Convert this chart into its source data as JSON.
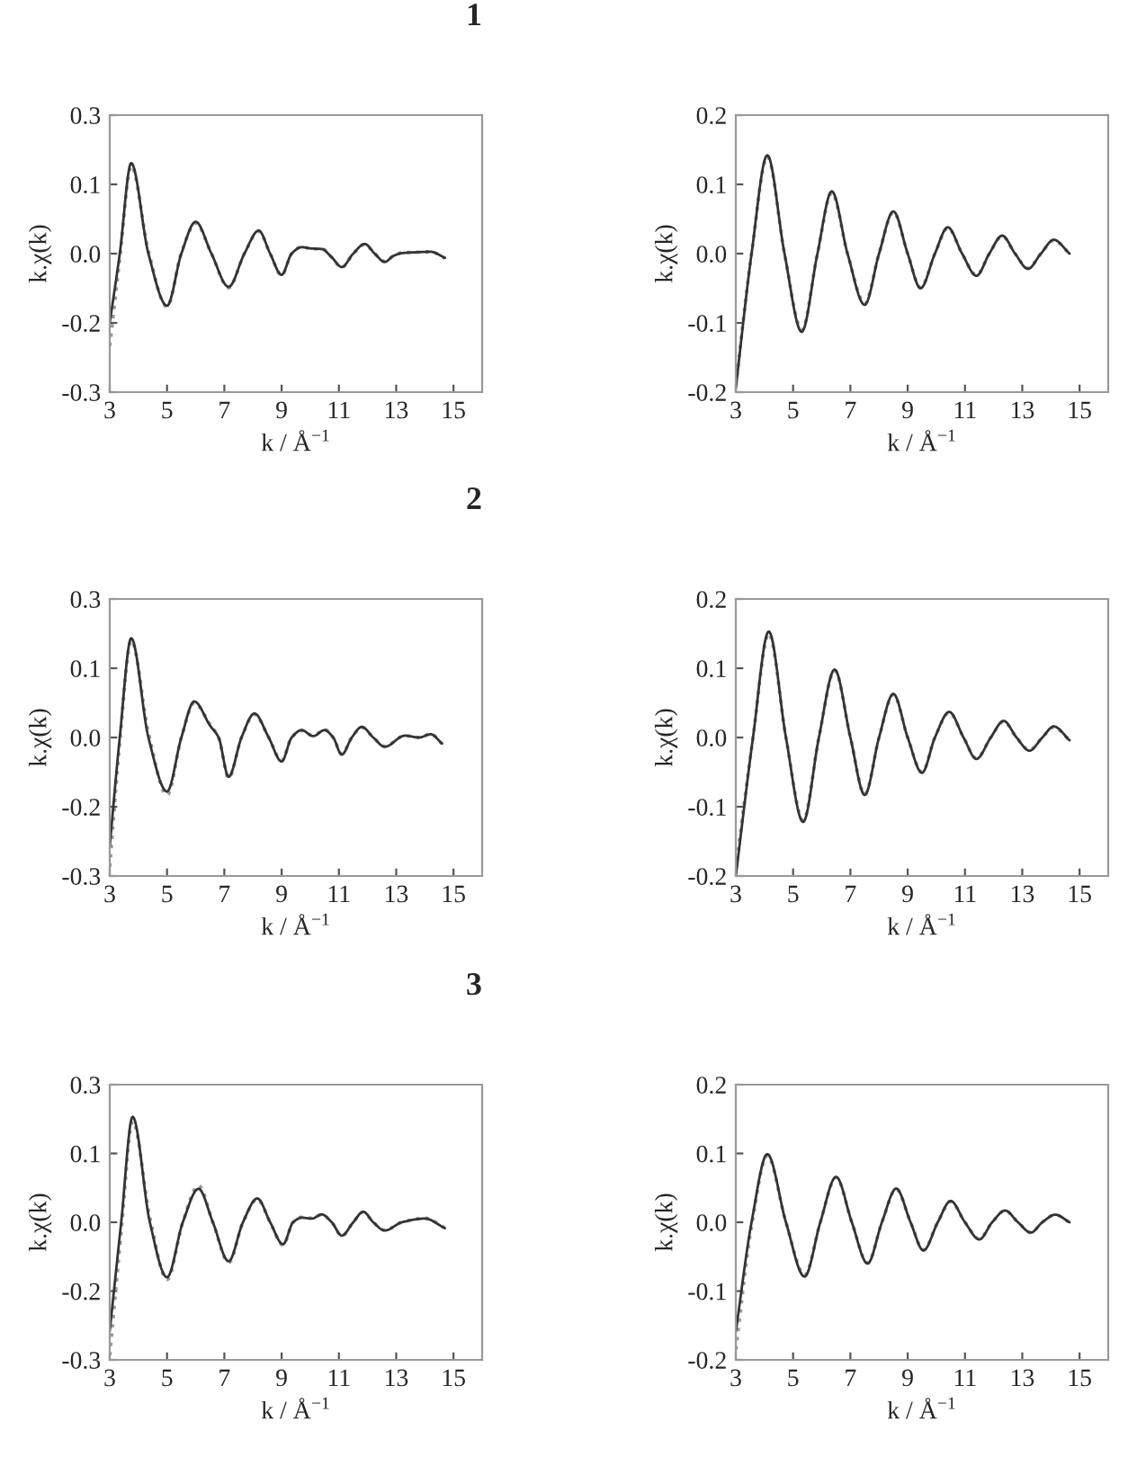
{
  "chart_data": [
    {
      "type": "line",
      "title": "1",
      "xlabel": "k / Å$^{−1}$",
      "ylabel": "k.χ(k)",
      "xlim": [
        3,
        16
      ],
      "xticks": [
        3,
        5,
        7,
        9,
        11,
        13,
        15
      ],
      "ylim": [
        -0.3,
        0.3
      ],
      "yticks": [
        {
          "value": 0.3,
          "label": "0.3"
        },
        {
          "value": 0.15,
          "label": "0.1"
        },
        {
          "value": 0,
          "label": "0.0"
        },
        {
          "value": -0.15,
          "label": "-0.2"
        },
        {
          "value": -0.3,
          "label": "-0.3"
        }
      ],
      "grid": false,
      "legend": false,
      "marker": "none",
      "x": [
        3.0,
        3.35,
        3.75,
        4.35,
        5.0,
        5.5,
        6.0,
        6.55,
        7.15,
        7.7,
        8.2,
        8.6,
        9.0,
        9.35,
        9.7,
        10.05,
        10.4,
        10.75,
        11.1,
        11.5,
        11.9,
        12.25,
        12.6,
        12.9,
        13.2,
        13.7,
        14.2,
        14.7
      ],
      "series": [
        {
          "color": "#999999",
          "line_style": "dotted",
          "values": [
            -0.2,
            -0.01,
            0.19,
            0.005,
            -0.115,
            0.002,
            0.066,
            0.0,
            -0.074,
            0.0,
            0.048,
            0.0,
            -0.047,
            0.0,
            0.015,
            0.01,
            0.011,
            -0.008,
            -0.03,
            0.0,
            0.02,
            0.0,
            -0.017,
            -0.005,
            0.002,
            0.003,
            0.004,
            -0.01
          ]
        },
        {
          "color": "#333333",
          "line_style": "solid",
          "values": [
            -0.15,
            0.0,
            0.196,
            0.0,
            -0.113,
            0.0,
            0.069,
            0.0,
            -0.072,
            0.0,
            0.05,
            0.0,
            -0.046,
            0.0,
            0.014,
            0.011,
            0.01,
            -0.008,
            -0.029,
            0.0,
            0.021,
            0.0,
            -0.018,
            -0.005,
            0.001,
            0.003,
            0.004,
            -0.009
          ]
        }
      ]
    },
    {
      "type": "line",
      "xlabel": "k / Å$^{−1}$",
      "ylabel": "k.χ(k)",
      "xlim": [
        3,
        16
      ],
      "xticks": [
        3,
        5,
        7,
        9,
        11,
        13,
        15
      ],
      "ylim": [
        -0.2,
        0.2
      ],
      "yticks": [
        {
          "value": 0.2,
          "label": "0.2"
        },
        {
          "value": 0.1,
          "label": "0.1"
        },
        {
          "value": 0,
          "label": "0.0"
        },
        {
          "value": -0.1,
          "label": "-0.1"
        },
        {
          "value": -0.2,
          "label": "-0.2"
        }
      ],
      "grid": false,
      "legend": false,
      "marker": "none",
      "x": [
        3.0,
        3.55,
        4.1,
        4.7,
        5.3,
        5.85,
        6.35,
        6.9,
        7.5,
        8.0,
        8.5,
        9.0,
        9.45,
        9.95,
        10.4,
        10.9,
        11.4,
        11.85,
        12.3,
        12.75,
        13.2,
        13.65,
        14.1,
        14.65
      ],
      "series": [
        {
          "color": "#999999",
          "line_style": "dotted",
          "values": [
            -0.19,
            0.0,
            0.14,
            0.0,
            -0.11,
            0.0,
            0.088,
            0.0,
            -0.072,
            0.0,
            0.06,
            0.0,
            -0.049,
            0.0,
            0.037,
            0.0,
            -0.031,
            0.0,
            0.025,
            0.0,
            -0.021,
            0.0,
            0.019,
            0.0
          ]
        },
        {
          "color": "#333333",
          "line_style": "solid",
          "values": [
            -0.194,
            0.0,
            0.142,
            0.0,
            -0.113,
            0.0,
            0.09,
            0.0,
            -0.074,
            0.0,
            0.061,
            0.0,
            -0.05,
            0.0,
            0.038,
            0.0,
            -0.032,
            0.0,
            0.026,
            0.0,
            -0.022,
            0.0,
            0.02,
            0.0
          ]
        }
      ]
    },
    {
      "type": "line",
      "title": "2",
      "xlabel": "k / Å$^{−1}$",
      "ylabel": "k.χ(k)",
      "xlim": [
        3,
        16
      ],
      "xticks": [
        3,
        5,
        7,
        9,
        11,
        13,
        15
      ],
      "ylim": [
        -0.3,
        0.3
      ],
      "yticks": [
        {
          "value": 0.3,
          "label": "0.3"
        },
        {
          "value": 0.15,
          "label": "0.1"
        },
        {
          "value": 0,
          "label": "0.0"
        },
        {
          "value": -0.15,
          "label": "-0.2"
        },
        {
          "value": -0.3,
          "label": "-0.3"
        }
      ],
      "grid": false,
      "legend": false,
      "marker": "none",
      "x": [
        3.0,
        3.35,
        3.75,
        4.35,
        5.0,
        5.5,
        5.95,
        6.5,
        6.8,
        7.15,
        7.6,
        8.05,
        8.55,
        9.0,
        9.35,
        9.7,
        10.1,
        10.5,
        10.8,
        11.1,
        11.45,
        11.8,
        12.2,
        12.6,
        13.3,
        13.8,
        14.2,
        14.6
      ],
      "series": [
        {
          "color": "#999999",
          "line_style": "dotted",
          "values": [
            -0.28,
            -0.01,
            0.21,
            0.01,
            -0.125,
            0.0,
            0.075,
            0.028,
            0.0,
            -0.088,
            0.0,
            0.05,
            0.0,
            -0.05,
            0.0,
            0.015,
            0.004,
            0.017,
            0.0,
            -0.036,
            0.0,
            0.022,
            0.0,
            -0.019,
            0.004,
            0.0,
            0.008,
            -0.014
          ]
        },
        {
          "color": "#333333",
          "line_style": "solid",
          "values": [
            -0.235,
            0.0,
            0.215,
            0.0,
            -0.117,
            0.0,
            0.078,
            0.026,
            0.0,
            -0.085,
            0.0,
            0.052,
            0.0,
            -0.052,
            0.0,
            0.016,
            0.003,
            0.016,
            0.0,
            -0.037,
            0.0,
            0.023,
            0.0,
            -0.02,
            0.004,
            0.0,
            0.007,
            -0.013
          ]
        }
      ]
    },
    {
      "type": "line",
      "xlabel": "k / Å$^{−1}$",
      "ylabel": "k.χ(k)",
      "xlim": [
        3,
        16
      ],
      "xticks": [
        3,
        5,
        7,
        9,
        11,
        13,
        15
      ],
      "ylim": [
        -0.2,
        0.2
      ],
      "yticks": [
        {
          "value": 0.2,
          "label": "0.2"
        },
        {
          "value": 0.1,
          "label": "0.1"
        },
        {
          "value": 0,
          "label": "0.0"
        },
        {
          "value": -0.1,
          "label": "-0.1"
        },
        {
          "value": -0.2,
          "label": "-0.2"
        }
      ],
      "grid": false,
      "legend": false,
      "marker": "none",
      "x": [
        3.0,
        3.6,
        4.15,
        4.75,
        5.35,
        5.9,
        6.45,
        7.0,
        7.5,
        8.0,
        8.5,
        9.0,
        9.5,
        9.95,
        10.45,
        10.95,
        11.4,
        11.9,
        12.35,
        12.8,
        13.25,
        13.7,
        14.1,
        14.65
      ],
      "series": [
        {
          "color": "#999999",
          "line_style": "dotted",
          "values": [
            -0.19,
            0.0,
            0.15,
            0.0,
            -0.12,
            0.0,
            0.097,
            0.0,
            -0.082,
            0.0,
            0.062,
            0.0,
            -0.05,
            0.0,
            0.036,
            0.0,
            -0.03,
            0.0,
            0.023,
            0.0,
            -0.018,
            0.0,
            0.015,
            -0.004
          ]
        },
        {
          "color": "#333333",
          "line_style": "solid",
          "values": [
            -0.2,
            0.0,
            0.153,
            0.0,
            -0.122,
            0.0,
            0.098,
            0.0,
            -0.083,
            0.0,
            0.063,
            0.0,
            -0.051,
            0.0,
            0.037,
            0.0,
            -0.031,
            0.0,
            0.024,
            0.0,
            -0.019,
            0.0,
            0.016,
            -0.004
          ]
        }
      ]
    },
    {
      "type": "line",
      "title": "3",
      "xlabel": "k / Å$^{−1}$",
      "ylabel": "k.χ(k)",
      "xlim": [
        3,
        16
      ],
      "xticks": [
        3,
        5,
        7,
        9,
        11,
        13,
        15
      ],
      "ylim": [
        -0.3,
        0.3
      ],
      "yticks": [
        {
          "value": 0.3,
          "label": "0.3"
        },
        {
          "value": 0.15,
          "label": "0.1"
        },
        {
          "value": 0,
          "label": "0.0"
        },
        {
          "value": -0.15,
          "label": "-0.2"
        },
        {
          "value": -0.3,
          "label": "-0.3"
        }
      ],
      "grid": false,
      "legend": false,
      "marker": "none",
      "x": [
        3.0,
        3.4,
        3.8,
        4.4,
        5.0,
        5.55,
        6.1,
        6.6,
        7.15,
        7.65,
        8.15,
        8.6,
        9.05,
        9.4,
        9.7,
        10.05,
        10.4,
        10.75,
        11.1,
        11.5,
        11.85,
        12.2,
        12.6,
        13.2,
        14.0,
        14.7
      ],
      "series": [
        {
          "color": "#999999",
          "line_style": "dotted",
          "values": [
            -0.29,
            -0.02,
            0.22,
            0.01,
            -0.125,
            0.0,
            0.08,
            0.0,
            -0.088,
            0.0,
            0.05,
            0.0,
            -0.05,
            0.0,
            0.011,
            0.009,
            0.016,
            0.0,
            -0.03,
            0.0,
            0.022,
            0.0,
            -0.017,
            0.0,
            0.009,
            -0.012
          ]
        },
        {
          "color": "#333333",
          "line_style": "solid",
          "values": [
            -0.237,
            0.0,
            0.23,
            0.0,
            -0.12,
            0.0,
            0.073,
            0.0,
            -0.085,
            0.0,
            0.052,
            0.0,
            -0.048,
            0.0,
            0.01,
            0.008,
            0.017,
            0.0,
            -0.029,
            0.0,
            0.023,
            0.0,
            -0.018,
            0.0,
            0.008,
            -0.013
          ]
        }
      ]
    },
    {
      "type": "line",
      "xlabel": "k / Å$^{−1}$",
      "ylabel": "k.χ(k)",
      "xlim": [
        3,
        16
      ],
      "xticks": [
        3,
        5,
        7,
        9,
        11,
        13,
        15
      ],
      "ylim": [
        -0.2,
        0.2
      ],
      "yticks": [
        {
          "value": 0.2,
          "label": "0.2"
        },
        {
          "value": 0.1,
          "label": "0.1"
        },
        {
          "value": 0,
          "label": "0.0"
        },
        {
          "value": -0.1,
          "label": "-0.1"
        },
        {
          "value": -0.2,
          "label": "-0.2"
        }
      ],
      "grid": false,
      "legend": false,
      "marker": "none",
      "x": [
        3.0,
        3.55,
        4.1,
        4.75,
        5.4,
        5.95,
        6.5,
        7.05,
        7.6,
        8.1,
        8.6,
        9.1,
        9.55,
        10.05,
        10.5,
        11.0,
        11.5,
        11.95,
        12.4,
        12.85,
        13.3,
        13.7,
        14.15,
        14.65
      ],
      "series": [
        {
          "color": "#999999",
          "line_style": "dotted",
          "values": [
            -0.185,
            -0.005,
            0.097,
            0.0,
            -0.077,
            0.0,
            0.065,
            0.0,
            -0.059,
            0.0,
            0.048,
            0.0,
            -0.04,
            0.0,
            0.03,
            0.0,
            -0.024,
            0.0,
            0.017,
            0.0,
            -0.015,
            0.0,
            0.011,
            0.0
          ]
        },
        {
          "color": "#333333",
          "line_style": "solid",
          "values": [
            -0.159,
            0.0,
            0.099,
            0.0,
            -0.079,
            0.0,
            0.066,
            0.0,
            -0.06,
            0.0,
            0.049,
            0.0,
            -0.041,
            0.0,
            0.031,
            0.0,
            -0.025,
            0.0,
            0.017,
            0.0,
            -0.015,
            0.0,
            0.011,
            0.0
          ]
        }
      ]
    }
  ]
}
